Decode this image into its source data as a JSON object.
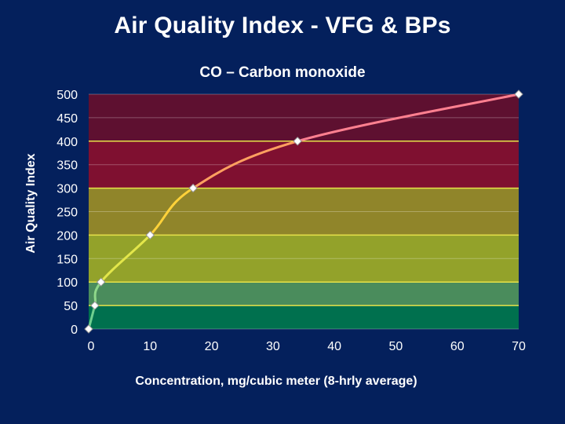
{
  "page_title": "Air Quality Index - VFG & BPs",
  "chart_data": {
    "type": "line",
    "title": "CO – Carbon monoxide",
    "xlabel": "Concentration, mg/cubic meter (8-hrly average)",
    "ylabel": "Air Quality Index",
    "xlim": [
      0,
      70
    ],
    "ylim": [
      0,
      500
    ],
    "xticks": [
      0,
      10,
      20,
      30,
      40,
      50,
      60,
      70
    ],
    "yticks": [
      0,
      50,
      100,
      150,
      200,
      250,
      300,
      350,
      400,
      450,
      500
    ],
    "grid": true,
    "legend": "none",
    "series": [
      {
        "name": "CO",
        "points": [
          [
            0,
            0
          ],
          [
            1,
            50
          ],
          [
            2,
            100
          ],
          [
            10,
            200
          ],
          [
            17,
            300
          ],
          [
            34,
            400
          ],
          [
            70,
            500
          ]
        ]
      }
    ],
    "bands": [
      {
        "from": 0,
        "to": 50,
        "color": "#00704e"
      },
      {
        "from": 50,
        "to": 100,
        "color": "#4a8c5c"
      },
      {
        "from": 100,
        "to": 200,
        "color": "#93a22a"
      },
      {
        "from": 200,
        "to": 300,
        "color": "#90852a"
      },
      {
        "from": 300,
        "to": 400,
        "color": "#7f1030"
      },
      {
        "from": 400,
        "to": 500,
        "color": "#5e1030"
      }
    ],
    "segment_colors": [
      "#6fcf8f",
      "#8fd88a",
      "#e3e64a",
      "#ffd23a",
      "#ffa060",
      "#ff8090"
    ]
  }
}
